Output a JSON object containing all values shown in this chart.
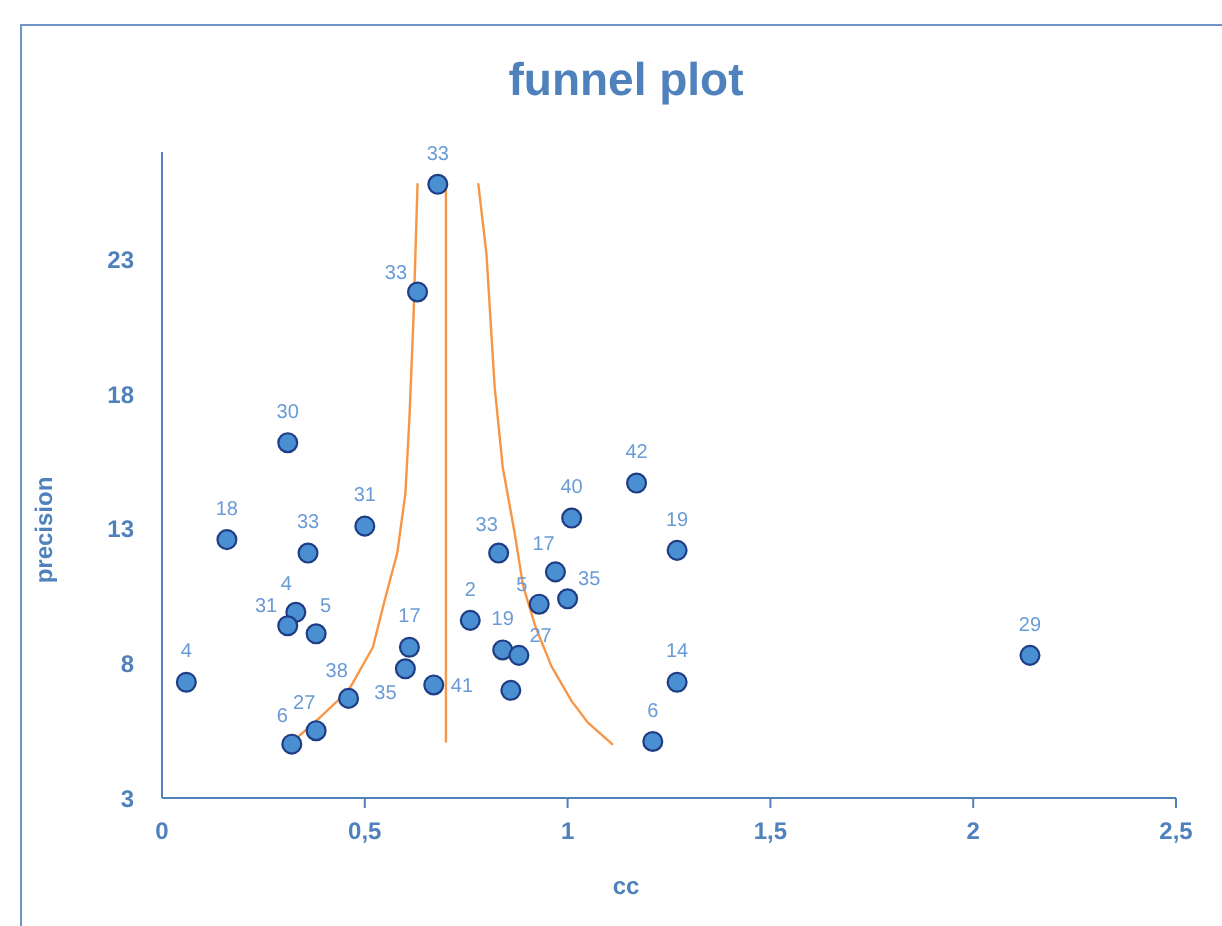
{
  "chart_data": {
    "type": "scatter",
    "title": "funnel plot",
    "xlabel": "cc",
    "ylabel": "precision",
    "xlim": [
      0,
      2.5
    ],
    "xticks": [
      0,
      {
        "value": 0.5,
        "label": "0,5"
      },
      1,
      {
        "value": 1.5,
        "label": "1,5"
      },
      2,
      {
        "value": 2.5,
        "label": "2,5"
      }
    ],
    "ylim": [
      3,
      27
    ],
    "yticks": [
      3,
      8,
      13,
      18,
      23
    ],
    "marker": "circle",
    "series": [
      {
        "type": "line",
        "color": "#f79646",
        "marker": "none",
        "x": [
          0.33,
          0.39,
          0.46,
          0.52,
          0.55,
          0.58,
          0.6,
          0.61,
          0.62,
          0.63
        ],
        "values": [
          5.2,
          6.0,
          7.0,
          8.6,
          10.4,
          12.1,
          14.3,
          17.1,
          20.8,
          25.8
        ]
      },
      {
        "type": "line",
        "color": "#f79646",
        "marker": "none",
        "x": [
          0.7,
          0.7
        ],
        "values": [
          5.1,
          25.8
        ]
      },
      {
        "type": "line",
        "color": "#f79646",
        "marker": "none",
        "x": [
          0.78,
          0.8,
          0.82,
          0.84,
          0.87,
          0.89,
          0.92,
          0.96,
          1.01,
          1.05,
          1.11
        ],
        "values": [
          25.8,
          23.2,
          18.3,
          15.3,
          12.8,
          10.9,
          9.4,
          7.9,
          6.6,
          5.8,
          5.0
        ]
      },
      {
        "color": "#4a8fd1",
        "x": [
          0.06,
          0.16,
          0.31,
          0.36,
          0.33,
          0.31,
          0.38,
          0.5,
          0.46,
          0.38,
          0.32,
          0.61,
          0.6,
          0.67,
          0.63,
          0.68,
          0.76,
          0.83,
          0.84,
          0.88,
          0.86,
          0.93,
          0.97,
          1.0,
          1.01,
          1.17,
          1.27,
          1.27,
          1.21,
          2.14
        ],
        "values": [
          7.3,
          12.6,
          16.2,
          12.1,
          9.9,
          9.4,
          9.1,
          13.1,
          6.7,
          5.5,
          5.0,
          8.6,
          7.8,
          7.2,
          21.8,
          25.8,
          9.6,
          12.1,
          8.5,
          8.3,
          7.0,
          10.2,
          11.4,
          10.4,
          13.4,
          14.7,
          12.2,
          7.3,
          5.1,
          8.3
        ]
      }
    ],
    "annotations": [
      {
        "text": "4",
        "x": 0.06,
        "y": 7.3
      },
      {
        "text": "18",
        "x": 0.16,
        "y": 12.6
      },
      {
        "text": "30",
        "x": 0.31,
        "y": 16.2
      },
      {
        "text": "33",
        "x": 0.36,
        "y": 12.1
      },
      {
        "text": "4",
        "x": 0.33,
        "y": 9.9
      },
      {
        "text": "31",
        "x": 0.31,
        "y": 9.4
      },
      {
        "text": "5",
        "x": 0.38,
        "y": 9.1
      },
      {
        "text": "31",
        "x": 0.5,
        "y": 13.1
      },
      {
        "text": "38",
        "x": 0.46,
        "y": 6.7
      },
      {
        "text": "27",
        "x": 0.38,
        "y": 5.5
      },
      {
        "text": "6",
        "x": 0.32,
        "y": 5.0
      },
      {
        "text": "17",
        "x": 0.61,
        "y": 8.6
      },
      {
        "text": "35",
        "x": 0.6,
        "y": 7.8
      },
      {
        "text": "41",
        "x": 0.67,
        "y": 7.2
      },
      {
        "text": "33",
        "x": 0.63,
        "y": 21.8
      },
      {
        "text": "33",
        "x": 0.68,
        "y": 25.8
      },
      {
        "text": "2",
        "x": 0.76,
        "y": 9.6
      },
      {
        "text": "33",
        "x": 0.83,
        "y": 12.1
      },
      {
        "text": "19",
        "x": 0.84,
        "y": 8.5
      },
      {
        "text": "27",
        "x": 0.88,
        "y": 8.3
      },
      {
        "text": "5",
        "x": 0.93,
        "y": 10.2
      },
      {
        "text": "17",
        "x": 0.97,
        "y": 11.4
      },
      {
        "text": "35",
        "x": 1.0,
        "y": 10.4
      },
      {
        "text": "40",
        "x": 1.01,
        "y": 13.4
      },
      {
        "text": "42",
        "x": 1.17,
        "y": 14.7
      },
      {
        "text": "19",
        "x": 1.27,
        "y": 12.2
      },
      {
        "text": "14",
        "x": 1.27,
        "y": 7.3
      },
      {
        "text": "6",
        "x": 1.21,
        "y": 5.1
      },
      {
        "text": "29",
        "x": 2.14,
        "y": 8.3
      }
    ]
  }
}
